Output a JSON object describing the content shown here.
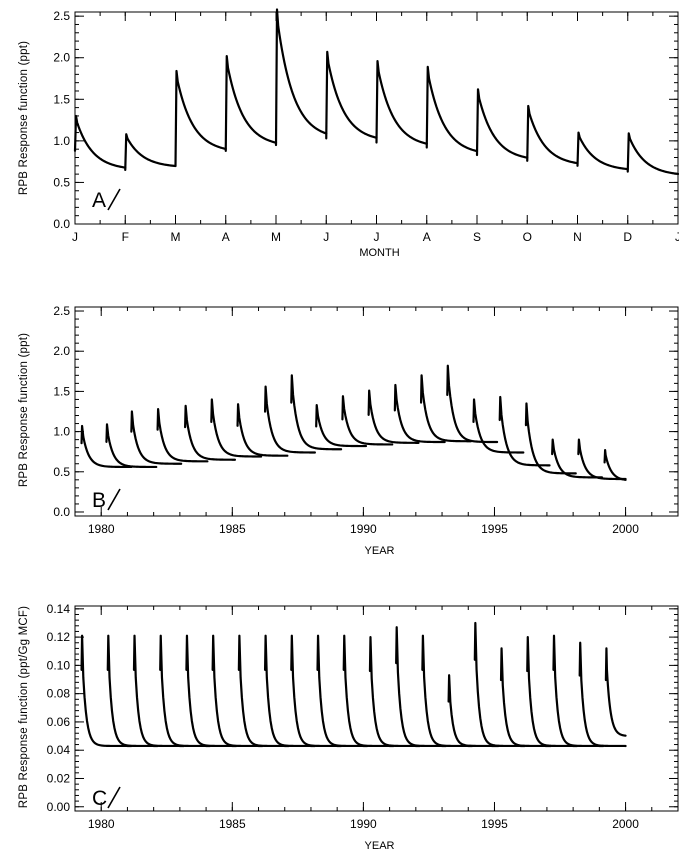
{
  "chart_data": [
    {
      "type": "line",
      "panel": "A",
      "title": "",
      "xlabel": "MONTH",
      "ylabel": "RPB Response function (ppt)",
      "ylim": [
        0,
        2.55
      ],
      "yticks": [
        "0.0",
        "0.5",
        "1.0",
        "1.5",
        "2.0",
        "2.5"
      ],
      "ytick_values": [
        0,
        0.5,
        1.0,
        1.5,
        2.0,
        2.5
      ],
      "xlim": [
        0,
        12
      ],
      "xticks": [
        "J",
        "F",
        "M",
        "A",
        "M",
        "J",
        "J",
        "A",
        "S",
        "O",
        "N",
        "D",
        "J"
      ],
      "xtick_values": [
        0,
        1,
        2,
        3,
        4,
        5,
        6,
        7,
        8,
        9,
        10,
        11,
        12
      ],
      "series": [
        {
          "pulses": [
            {
              "t0": 0.0,
              "base": 0.88,
              "peak": 1.3,
              "tail": 0.65
            },
            {
              "t0": 1.0,
              "base": 0.65,
              "peak": 1.08,
              "tail": 0.68
            },
            {
              "t0": 2.0,
              "base": 0.7,
              "peak": 1.84,
              "tail": 0.86
            },
            {
              "t0": 3.0,
              "base": 0.88,
              "peak": 2.02,
              "tail": 0.93
            },
            {
              "t0": 4.0,
              "base": 0.95,
              "peak": 2.58,
              "tail": 1.02
            },
            {
              "t0": 5.0,
              "base": 1.03,
              "peak": 2.07,
              "tail": 0.99
            },
            {
              "t0": 6.0,
              "base": 0.98,
              "peak": 1.96,
              "tail": 0.92
            },
            {
              "t0": 7.0,
              "base": 0.92,
              "peak": 1.89,
              "tail": 0.83
            },
            {
              "t0": 8.0,
              "base": 0.83,
              "peak": 1.62,
              "tail": 0.76
            },
            {
              "t0": 9.0,
              "base": 0.76,
              "peak": 1.42,
              "tail": 0.7
            },
            {
              "t0": 10.0,
              "base": 0.7,
              "peak": 1.1,
              "tail": 0.64
            },
            {
              "t0": 11.0,
              "base": 0.63,
              "peak": 1.09,
              "tail": 0.58
            }
          ]
        }
      ],
      "legend": "none",
      "grid": false
    },
    {
      "type": "line",
      "panel": "B",
      "title": "",
      "xlabel": "YEAR",
      "ylabel": "RPB Response function (ppt)",
      "ylim": [
        -0.05,
        2.55
      ],
      "yticks": [
        "0.0",
        "0.5",
        "1.0",
        "1.5",
        "2.0",
        "2.5"
      ],
      "ytick_values": [
        0,
        0.5,
        1.0,
        1.5,
        2.0,
        2.5
      ],
      "xlim": [
        1979,
        2002
      ],
      "xticks": [
        "1980",
        "1985",
        "1990",
        "1995",
        "2000"
      ],
      "xtick_values": [
        1980,
        1985,
        1990,
        1995,
        2000
      ],
      "series": [
        {
          "pulses": [
            {
              "t0": 1979.25,
              "peak": 1.07,
              "tail": 0.56
            },
            {
              "t0": 1980.2,
              "peak": 1.09,
              "tail": 0.56
            },
            {
              "t0": 1981.15,
              "peak": 1.25,
              "tail": 0.6
            },
            {
              "t0": 1982.15,
              "peak": 1.28,
              "tail": 0.63
            },
            {
              "t0": 1983.2,
              "peak": 1.32,
              "tail": 0.65
            },
            {
              "t0": 1984.2,
              "peak": 1.4,
              "tail": 0.69
            },
            {
              "t0": 1985.2,
              "peak": 1.34,
              "tail": 0.7
            },
            {
              "t0": 1986.25,
              "peak": 1.56,
              "tail": 0.74
            },
            {
              "t0": 1987.25,
              "peak": 1.7,
              "tail": 0.78
            },
            {
              "t0": 1988.2,
              "peak": 1.33,
              "tail": 0.82
            },
            {
              "t0": 1989.2,
              "peak": 1.44,
              "tail": 0.84
            },
            {
              "t0": 1990.2,
              "peak": 1.51,
              "tail": 0.86
            },
            {
              "t0": 1991.2,
              "peak": 1.58,
              "tail": 0.87
            },
            {
              "t0": 1992.2,
              "peak": 1.7,
              "tail": 0.88
            },
            {
              "t0": 1993.2,
              "peak": 1.82,
              "tail": 0.87
            },
            {
              "t0": 1994.2,
              "peak": 1.4,
              "tail": 0.74
            },
            {
              "t0": 1995.2,
              "peak": 1.43,
              "tail": 0.58
            },
            {
              "t0": 1996.2,
              "peak": 1.35,
              "tail": 0.48
            },
            {
              "t0": 1997.2,
              "peak": 0.9,
              "tail": 0.43
            },
            {
              "t0": 1998.2,
              "peak": 0.9,
              "tail": 0.41
            },
            {
              "t0": 1999.2,
              "peak": 0.77,
              "tail": 0.39
            }
          ]
        }
      ],
      "legend": "none",
      "grid": false
    },
    {
      "type": "line",
      "panel": "C",
      "title": "",
      "xlabel": "YEAR",
      "ylabel": "RPB Response function (ppt/Gg MCF)",
      "ylim": [
        -0.003,
        0.142
      ],
      "yticks": [
        "0.00",
        "0.02",
        "0.04",
        "0.06",
        "0.08",
        "0.10",
        "0.12",
        "0.14"
      ],
      "ytick_values": [
        0,
        0.02,
        0.04,
        0.06,
        0.08,
        0.1,
        0.12,
        0.14
      ],
      "xlim": [
        1979,
        2002
      ],
      "xticks": [
        "1980",
        "1985",
        "1990",
        "1995",
        "2000"
      ],
      "xtick_values": [
        1980,
        1985,
        1990,
        1995,
        2000
      ],
      "series": [
        {
          "pulses": [
            {
              "t0": 1979.25,
              "peak": 0.121,
              "tail": 0.043
            },
            {
              "t0": 1980.25,
              "peak": 0.121,
              "tail": 0.043
            },
            {
              "t0": 1981.25,
              "peak": 0.121,
              "tail": 0.043
            },
            {
              "t0": 1982.25,
              "peak": 0.121,
              "tail": 0.043
            },
            {
              "t0": 1983.25,
              "peak": 0.121,
              "tail": 0.043
            },
            {
              "t0": 1984.25,
              "peak": 0.121,
              "tail": 0.043
            },
            {
              "t0": 1985.25,
              "peak": 0.121,
              "tail": 0.043
            },
            {
              "t0": 1986.25,
              "peak": 0.121,
              "tail": 0.043
            },
            {
              "t0": 1987.25,
              "peak": 0.121,
              "tail": 0.043
            },
            {
              "t0": 1988.25,
              "peak": 0.121,
              "tail": 0.043
            },
            {
              "t0": 1989.25,
              "peak": 0.121,
              "tail": 0.043
            },
            {
              "t0": 1990.25,
              "peak": 0.12,
              "tail": 0.043
            },
            {
              "t0": 1991.25,
              "peak": 0.127,
              "tail": 0.043
            },
            {
              "t0": 1992.25,
              "peak": 0.121,
              "tail": 0.043
            },
            {
              "t0": 1993.25,
              "peak": 0.093,
              "tail": 0.043
            },
            {
              "t0": 1994.25,
              "peak": 0.13,
              "tail": 0.043
            },
            {
              "t0": 1995.25,
              "peak": 0.112,
              "tail": 0.043
            },
            {
              "t0": 1996.25,
              "peak": 0.12,
              "tail": 0.043
            },
            {
              "t0": 1997.25,
              "peak": 0.121,
              "tail": 0.043
            },
            {
              "t0": 1998.25,
              "peak": 0.116,
              "tail": 0.043
            },
            {
              "t0": 1999.25,
              "peak": 0.112,
              "tail": 0.05
            }
          ]
        }
      ],
      "legend": "none",
      "grid": false
    }
  ]
}
